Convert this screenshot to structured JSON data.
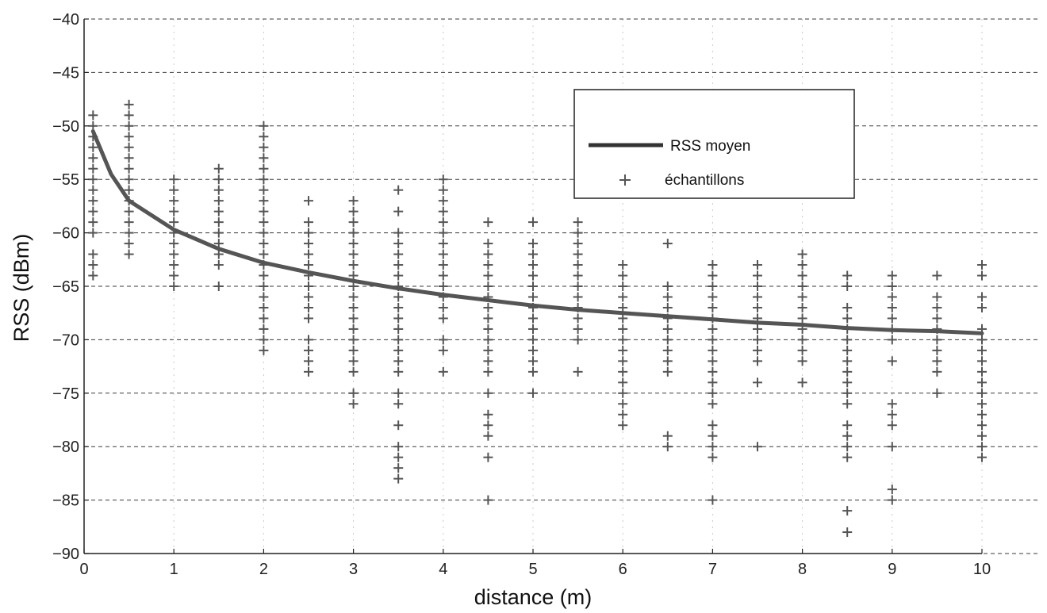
{
  "chart_data": {
    "type": "scatter",
    "title": "",
    "xlabel": "distance (m)",
    "ylabel": "RSS (dBm)",
    "xlim": [
      0,
      10
    ],
    "ylim": [
      -90,
      -40
    ],
    "x_ticks": [
      0,
      1,
      2,
      3,
      4,
      5,
      6,
      7,
      8,
      9,
      10
    ],
    "y_ticks": [
      -40,
      -45,
      -50,
      -55,
      -60,
      -65,
      -70,
      -75,
      -80,
      -85,
      -90
    ],
    "grid": true,
    "legend_position": "top-right",
    "series": [
      {
        "name": "RSS moyen",
        "kind": "line",
        "x": [
          0.1,
          0.3,
          0.5,
          1,
          1.5,
          2,
          2.5,
          3,
          3.5,
          4,
          4.5,
          5,
          5.5,
          6,
          6.5,
          7,
          7.5,
          8,
          8.5,
          9,
          9.5,
          10
        ],
        "y": [
          -50.5,
          -54.5,
          -57,
          -59.7,
          -61.5,
          -62.8,
          -63.7,
          -64.5,
          -65.2,
          -65.8,
          -66.3,
          -66.8,
          -67.2,
          -67.5,
          -67.8,
          -68.1,
          -68.4,
          -68.6,
          -68.9,
          -69.1,
          -69.2,
          -69.4
        ]
      },
      {
        "name": "échantillons",
        "kind": "scatter",
        "groups": [
          {
            "x": 0.1,
            "y": [
              -49,
              -50,
              -51,
              -52,
              -53,
              -54,
              -55,
              -56,
              -57,
              -58,
              -59,
              -60,
              -62,
              -63,
              -64
            ]
          },
          {
            "x": 0.5,
            "y": [
              -48,
              -49,
              -50,
              -51,
              -52,
              -53,
              -54,
              -55,
              -56,
              -57,
              -58,
              -59,
              -60,
              -61,
              -62
            ]
          },
          {
            "x": 1,
            "y": [
              -55,
              -56,
              -57,
              -58,
              -59,
              -60,
              -61,
              -62,
              -63,
              -64,
              -65
            ]
          },
          {
            "x": 1.5,
            "y": [
              -54,
              -55,
              -56,
              -57,
              -58,
              -59,
              -60,
              -61,
              -62,
              -63,
              -65
            ]
          },
          {
            "x": 2,
            "y": [
              -50,
              -51,
              -52,
              -53,
              -54,
              -55,
              -56,
              -57,
              -58,
              -59,
              -60,
              -61,
              -62,
              -63,
              -64,
              -65,
              -66,
              -67,
              -68,
              -69,
              -70,
              -71
            ]
          },
          {
            "x": 2.5,
            "y": [
              -57,
              -59,
              -60,
              -61,
              -62,
              -63,
              -64,
              -65,
              -66,
              -67,
              -68,
              -70,
              -71,
              -72,
              -73
            ]
          },
          {
            "x": 3,
            "y": [
              -57,
              -58,
              -59,
              -60,
              -61,
              -62,
              -63,
              -64,
              -65,
              -66,
              -67,
              -68,
              -69,
              -70,
              -71,
              -72,
              -73,
              -75,
              -76
            ]
          },
          {
            "x": 3.5,
            "y": [
              -56,
              -58,
              -60,
              -61,
              -62,
              -63,
              -64,
              -65,
              -66,
              -67,
              -68,
              -69,
              -70,
              -71,
              -72,
              -73,
              -75,
              -76,
              -78,
              -80,
              -81,
              -82,
              -83
            ]
          },
          {
            "x": 4,
            "y": [
              -55,
              -56,
              -57,
              -58,
              -59,
              -60,
              -61,
              -62,
              -63,
              -64,
              -65,
              -66,
              -67,
              -68,
              -70,
              -71,
              -73
            ]
          },
          {
            "x": 4.5,
            "y": [
              -59,
              -61,
              -62,
              -63,
              -64,
              -65,
              -66,
              -67,
              -68,
              -69,
              -70,
              -71,
              -72,
              -73,
              -75,
              -77,
              -78,
              -79,
              -81,
              -85
            ]
          },
          {
            "x": 5,
            "y": [
              -59,
              -61,
              -62,
              -63,
              -64,
              -65,
              -66,
              -67,
              -68,
              -69,
              -70,
              -71,
              -72,
              -73,
              -75
            ]
          },
          {
            "x": 5.5,
            "y": [
              -59,
              -60,
              -61,
              -62,
              -63,
              -64,
              -65,
              -66,
              -67,
              -68,
              -69,
              -70,
              -73
            ]
          },
          {
            "x": 6,
            "y": [
              -63,
              -64,
              -65,
              -66,
              -67,
              -68,
              -69,
              -70,
              -71,
              -72,
              -73,
              -74,
              -75,
              -76,
              -77,
              -78
            ]
          },
          {
            "x": 6.5,
            "y": [
              -61,
              -65,
              -66,
              -67,
              -68,
              -69,
              -70,
              -71,
              -72,
              -73,
              -79,
              -80
            ]
          },
          {
            "x": 7,
            "y": [
              -63,
              -64,
              -65,
              -66,
              -67,
              -68,
              -69,
              -70,
              -71,
              -72,
              -73,
              -74,
              -75,
              -76,
              -78,
              -79,
              -80,
              -81,
              -85
            ]
          },
          {
            "x": 7.5,
            "y": [
              -63,
              -64,
              -65,
              -66,
              -67,
              -68,
              -69,
              -70,
              -71,
              -72,
              -74,
              -80
            ]
          },
          {
            "x": 8,
            "y": [
              -62,
              -63,
              -64,
              -65,
              -66,
              -67,
              -68,
              -69,
              -70,
              -71,
              -72,
              -74
            ]
          },
          {
            "x": 8.5,
            "y": [
              -64,
              -65,
              -67,
              -68,
              -69,
              -70,
              -71,
              -72,
              -73,
              -74,
              -75,
              -76,
              -78,
              -79,
              -80,
              -81,
              -86,
              -88
            ]
          },
          {
            "x": 9,
            "y": [
              -64,
              -65,
              -66,
              -67,
              -68,
              -69,
              -70,
              -72,
              -76,
              -77,
              -78,
              -80,
              -84,
              -85
            ]
          },
          {
            "x": 9.5,
            "y": [
              -64,
              -66,
              -67,
              -68,
              -69,
              -70,
              -71,
              -72,
              -73,
              -75
            ]
          },
          {
            "x": 10,
            "y": [
              -63,
              -64,
              -66,
              -67,
              -69,
              -70,
              -71,
              -72,
              -73,
              -74,
              -75,
              -76,
              -77,
              -78,
              -79,
              -80,
              -81
            ]
          }
        ]
      }
    ]
  },
  "legend": {
    "line_label": "RSS moyen",
    "marker_label": "échantillons"
  },
  "colors": {
    "line": "#555555",
    "samples": "#555555",
    "grid_major": "#3a3a3a",
    "axes": "#222222"
  }
}
